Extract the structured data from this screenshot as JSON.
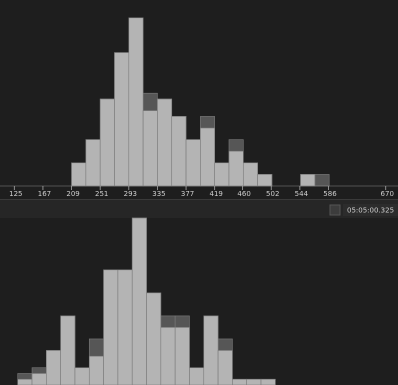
{
  "chart_data": [
    {
      "type": "histogram",
      "bins": [
        209,
        230,
        251,
        272,
        293,
        314,
        335,
        356,
        377,
        398,
        419,
        440,
        461,
        482,
        503,
        524,
        545,
        566,
        587
      ],
      "series": [
        {
          "color": "#565656",
          "values": [
            4,
            8,
            15,
            23,
            29,
            16,
            15,
            12,
            8,
            12,
            4,
            8,
            4,
            2,
            0,
            0,
            2,
            2
          ]
        },
        {
          "color": "#b4b4b4",
          "values": [
            4,
            8,
            15,
            23,
            29,
            13,
            15,
            12,
            8,
            10,
            4,
            6,
            4,
            2,
            0,
            0,
            2,
            0
          ]
        }
      ],
      "xlim": [
        104,
        688
      ],
      "ylim": [
        0,
        30
      ],
      "xticks": [
        125,
        167,
        209,
        251,
        293,
        335,
        377,
        419,
        460,
        502,
        544,
        586,
        670
      ]
    },
    {
      "type": "histogram",
      "bins": [
        130,
        151,
        172,
        193,
        214,
        235,
        256,
        277,
        298,
        319,
        340,
        361,
        382,
        403,
        424,
        445,
        466,
        487,
        508
      ],
      "series": [
        {
          "color": "#565656",
          "values": [
            2,
            3,
            6,
            12,
            3,
            8,
            20,
            20,
            29,
            16,
            12,
            12,
            3,
            12,
            8,
            1,
            1,
            1
          ]
        },
        {
          "color": "#b4b4b4",
          "values": [
            1,
            2,
            6,
            12,
            3,
            5,
            20,
            20,
            29,
            16,
            10,
            10,
            3,
            12,
            6,
            1,
            1,
            1
          ]
        }
      ],
      "xlim": [
        104,
        688
      ],
      "ylim": [
        0,
        29
      ]
    }
  ],
  "timestamp": "05:05:00.325"
}
